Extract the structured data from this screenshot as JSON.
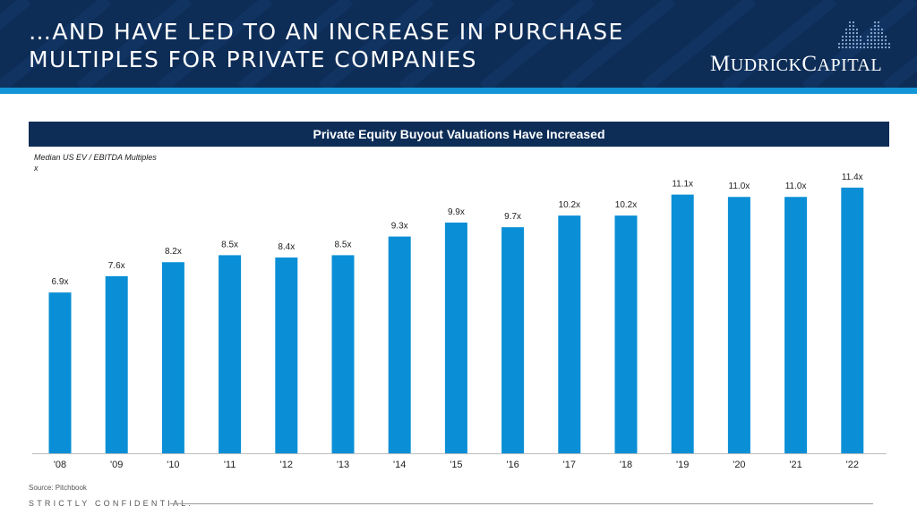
{
  "header": {
    "title_line1": "…AND HAVE LED TO AN INCREASE IN PURCHASE",
    "title_line2": "MULTIPLES FOR PRIVATE COMPANIES",
    "logo_m": "M",
    "logo_udrick": "UDRICK",
    "logo_c": "C",
    "logo_apital": "APITAL",
    "logo_icon": "mudrick-logo-icon",
    "colors": {
      "navy": "#0d2d57",
      "accent": "#1495d8"
    }
  },
  "chart_data": {
    "type": "bar",
    "title": "Private Equity Buyout Valuations Have Increased",
    "subtitle": "Median US EV / EBITDA Multiples",
    "unit": "x",
    "categories": [
      "'08",
      "'09",
      "'10",
      "'11",
      "'12",
      "'13",
      "'14",
      "'15",
      "'16",
      "'17",
      "'18",
      "'19",
      "'20",
      "'21",
      "'22"
    ],
    "values": [
      6.9,
      7.6,
      8.2,
      8.5,
      8.4,
      8.5,
      9.3,
      9.9,
      9.7,
      10.2,
      10.2,
      11.1,
      11.0,
      11.0,
      11.4
    ],
    "value_labels": [
      "6.9x",
      "7.6x",
      "8.2x",
      "8.5x",
      "8.4x",
      "8.5x",
      "9.3x",
      "9.9x",
      "9.7x",
      "10.2x",
      "10.2x",
      "11.1x",
      "11.0x",
      "11.0x",
      "11.4x"
    ],
    "ylim": [
      0,
      11.7
    ],
    "bar_color": "#0a8fd6",
    "grid": false
  },
  "footer": {
    "source": "Source: Pitchbook",
    "confidential": "STRICTLY CONFIDENTIAL."
  }
}
